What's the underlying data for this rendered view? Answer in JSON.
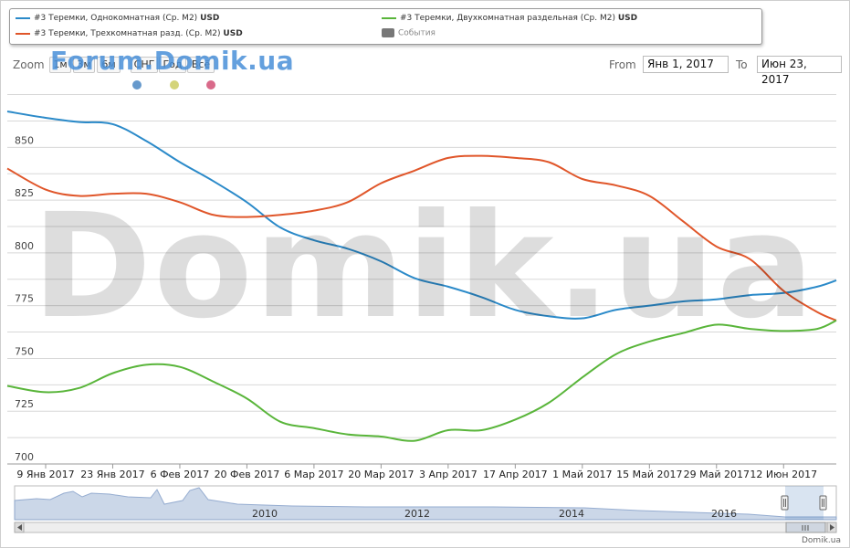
{
  "legend": {
    "items": [
      {
        "label": "#3 Теремки, Однокомнатная (Ср. М2)",
        "unit": "USD",
        "color": "#2b8ac9"
      },
      {
        "label": "#3 Теремки, Трехкомнатная разд. (Ср. М2)",
        "unit": "USD",
        "color": "#e0562a"
      },
      {
        "label": "#3 Теремки, Двухкомнатная раздельная (Ср. М2)",
        "unit": "USD",
        "color": "#59b53a"
      },
      {
        "label": "События",
        "unit": "",
        "color": "#777777"
      }
    ]
  },
  "zoom": {
    "label": "Zoom",
    "buttons": [
      "1м",
      "3м",
      "6м",
      "СНГ",
      "Год",
      "Всё"
    ]
  },
  "range": {
    "from_label": "From",
    "from_value": "Янв 1, 2017",
    "to_label": "To",
    "to_value": "Июн 23, 2017"
  },
  "watermarks": {
    "top": "Forum.Domik.ua",
    "big": "Domik.ua"
  },
  "event_dot_colors": [
    "#6699cc",
    "#d4d47a",
    "#d96a8a"
  ],
  "credit": "Domik.ua",
  "chart_data": {
    "type": "line",
    "x": [
      "2017-01-01",
      "2017-01-09",
      "2017-01-16",
      "2017-01-23",
      "2017-01-30",
      "2017-02-06",
      "2017-02-13",
      "2017-02-20",
      "2017-02-27",
      "2017-03-06",
      "2017-03-13",
      "2017-03-20",
      "2017-03-27",
      "2017-04-03",
      "2017-04-10",
      "2017-04-17",
      "2017-04-24",
      "2017-05-01",
      "2017-05-08",
      "2017-05-15",
      "2017-05-22",
      "2017-05-29",
      "2017-06-05",
      "2017-06-12",
      "2017-06-19",
      "2017-06-23"
    ],
    "series": [
      {
        "name": "#3 Теремки, Однокомнатная (Ср. М2)",
        "color": "#2b8ac9",
        "values": [
          867,
          864,
          862,
          861,
          853,
          843,
          834,
          824,
          812,
          806,
          802,
          796,
          788,
          784,
          779,
          773,
          770,
          769,
          773,
          775,
          777,
          778,
          780,
          781,
          784,
          787
        ]
      },
      {
        "name": "#3 Теремки, Трехкомнатная разд. (Ср. М2)",
        "color": "#e0562a",
        "values": [
          840,
          830,
          827,
          828,
          828,
          824,
          818,
          817,
          818,
          820,
          824,
          833,
          839,
          845,
          846,
          845,
          843,
          835,
          832,
          827,
          815,
          803,
          797,
          782,
          772,
          768
        ]
      },
      {
        "name": "#3 Теремки, Двухкомнатная раздельная (Ср. М2)",
        "color": "#59b53a",
        "values": [
          737,
          734,
          736,
          743,
          747,
          746,
          739,
          731,
          720,
          717,
          714,
          713,
          711,
          716,
          716,
          721,
          729,
          741,
          752,
          758,
          762,
          766,
          764,
          763,
          764,
          768
        ]
      }
    ],
    "ylim": [
      700,
      880
    ],
    "yticks": [
      700,
      725,
      750,
      775,
      800,
      825,
      850
    ],
    "xticks": [
      "9 Янв 2017",
      "23 Янв 2017",
      "6 Фев 2017",
      "20 Фев 2017",
      "6 Мар 2017",
      "20 Мар 2017",
      "3 Апр 2017",
      "17 Апр 2017",
      "1 Май 2017",
      "15 Май 2017",
      "29 Май 2017",
      "12 Июн 2017"
    ],
    "navigator_years": [
      "2010",
      "2012",
      "2014",
      "2016"
    ],
    "grid": true,
    "xlabel": "",
    "ylabel": ""
  }
}
